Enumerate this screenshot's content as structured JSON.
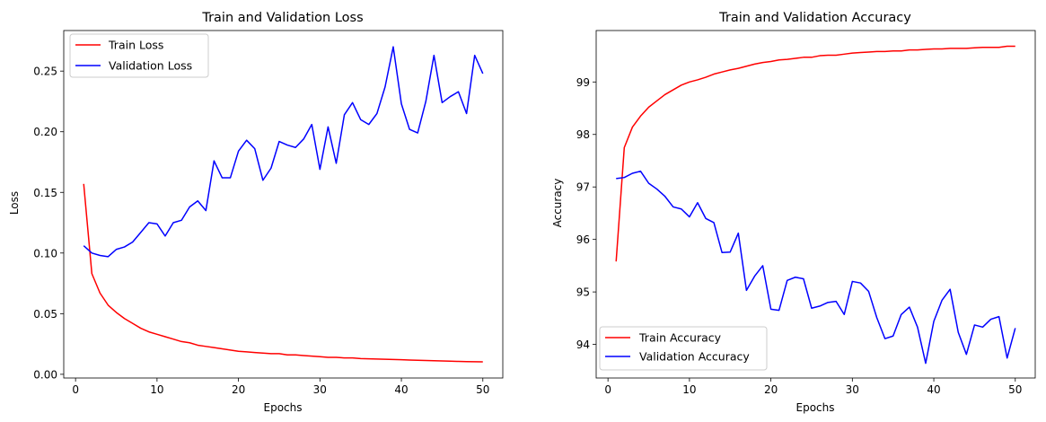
{
  "chart_data": [
    {
      "type": "line",
      "title": "Train and Validation Loss",
      "xlabel": "Epochs",
      "ylabel": "Loss",
      "xlim": [
        -1.45,
        52.45
      ],
      "ylim": [
        -0.00305,
        0.28345
      ],
      "xticks": [
        0,
        10,
        20,
        30,
        40,
        50
      ],
      "xtick_labels": [
        "0",
        "10",
        "20",
        "30",
        "40",
        "50"
      ],
      "yticks": [
        0.0,
        0.05,
        0.1,
        0.15,
        0.2,
        0.25
      ],
      "ytick_labels": [
        "0.00",
        "0.05",
        "0.10",
        "0.15",
        "0.20",
        "0.25"
      ],
      "grid": false,
      "legend_position": "top-left",
      "x": [
        1,
        2,
        3,
        4,
        5,
        6,
        7,
        8,
        9,
        10,
        11,
        12,
        13,
        14,
        15,
        16,
        17,
        18,
        19,
        20,
        21,
        22,
        23,
        24,
        25,
        26,
        27,
        28,
        29,
        30,
        31,
        32,
        33,
        34,
        35,
        36,
        37,
        38,
        39,
        40,
        41,
        42,
        43,
        44,
        45,
        46,
        47,
        48,
        49,
        50
      ],
      "series": [
        {
          "name": "Train Loss",
          "color": "#ff0000",
          "values": [
            0.157,
            0.083,
            0.067,
            0.057,
            0.051,
            0.046,
            0.042,
            0.038,
            0.035,
            0.033,
            0.031,
            0.029,
            0.027,
            0.026,
            0.024,
            0.023,
            0.022,
            0.021,
            0.02,
            0.019,
            0.0185,
            0.018,
            0.0175,
            0.017,
            0.017,
            0.016,
            0.016,
            0.0155,
            0.015,
            0.0145,
            0.014,
            0.014,
            0.0135,
            0.0135,
            0.013,
            0.0128,
            0.0126,
            0.0124,
            0.0122,
            0.012,
            0.0118,
            0.0116,
            0.0114,
            0.0112,
            0.011,
            0.0108,
            0.0106,
            0.0105,
            0.0104,
            0.0103
          ]
        },
        {
          "name": "Validation Loss",
          "color": "#0000ff",
          "values": [
            0.106,
            0.1,
            0.098,
            0.097,
            0.103,
            0.105,
            0.109,
            0.117,
            0.125,
            0.124,
            0.114,
            0.125,
            0.127,
            0.138,
            0.143,
            0.135,
            0.176,
            0.162,
            0.162,
            0.184,
            0.193,
            0.186,
            0.16,
            0.17,
            0.192,
            0.189,
            0.187,
            0.194,
            0.206,
            0.169,
            0.204,
            0.174,
            0.214,
            0.224,
            0.21,
            0.206,
            0.215,
            0.237,
            0.27,
            0.223,
            0.202,
            0.199,
            0.225,
            0.263,
            0.224,
            0.229,
            0.233,
            0.215,
            0.263,
            0.248
          ]
        }
      ]
    },
    {
      "type": "line",
      "title": "Train and Validation Accuracy",
      "xlabel": "Epochs",
      "ylabel": "Accuracy",
      "xlim": [
        -1.45,
        52.45
      ],
      "ylim": [
        93.36,
        99.98
      ],
      "xticks": [
        0,
        10,
        20,
        30,
        40,
        50
      ],
      "xtick_labels": [
        "0",
        "10",
        "20",
        "30",
        "40",
        "50"
      ],
      "yticks": [
        94,
        95,
        96,
        97,
        98,
        99
      ],
      "ytick_labels": [
        "94",
        "95",
        "96",
        "97",
        "98",
        "99"
      ],
      "grid": false,
      "legend_position": "bottom-left",
      "x": [
        1,
        2,
        3,
        4,
        5,
        6,
        7,
        8,
        9,
        10,
        11,
        12,
        13,
        14,
        15,
        16,
        17,
        18,
        19,
        20,
        21,
        22,
        23,
        24,
        25,
        26,
        27,
        28,
        29,
        30,
        31,
        32,
        33,
        34,
        35,
        36,
        37,
        38,
        39,
        40,
        41,
        42,
        43,
        44,
        45,
        46,
        47,
        48,
        49,
        50
      ],
      "series": [
        {
          "name": "Train Accuracy",
          "color": "#ff0000",
          "values": [
            95.58,
            97.75,
            98.14,
            98.35,
            98.52,
            98.64,
            98.76,
            98.85,
            98.94,
            99.0,
            99.04,
            99.09,
            99.15,
            99.19,
            99.23,
            99.26,
            99.3,
            99.34,
            99.37,
            99.39,
            99.42,
            99.43,
            99.45,
            99.47,
            99.47,
            99.5,
            99.51,
            99.51,
            99.53,
            99.55,
            99.56,
            99.57,
            99.58,
            99.58,
            99.59,
            99.59,
            99.61,
            99.61,
            99.62,
            99.63,
            99.63,
            99.64,
            99.64,
            99.64,
            99.65,
            99.66,
            99.66,
            99.66,
            99.68,
            99.68
          ]
        },
        {
          "name": "Validation Accuracy",
          "color": "#0000ff",
          "values": [
            97.16,
            97.18,
            97.26,
            97.3,
            97.07,
            96.96,
            96.82,
            96.62,
            96.58,
            96.43,
            96.7,
            96.4,
            96.32,
            95.75,
            95.76,
            96.12,
            95.03,
            95.3,
            95.5,
            94.67,
            94.65,
            95.22,
            95.28,
            95.25,
            94.69,
            94.73,
            94.8,
            94.82,
            94.57,
            95.2,
            95.17,
            95.01,
            94.51,
            94.11,
            94.16,
            94.57,
            94.71,
            94.33,
            93.64,
            94.44,
            94.84,
            95.05,
            94.23,
            93.81,
            94.37,
            94.33,
            94.48,
            94.53,
            93.74,
            94.31
          ]
        }
      ]
    }
  ]
}
